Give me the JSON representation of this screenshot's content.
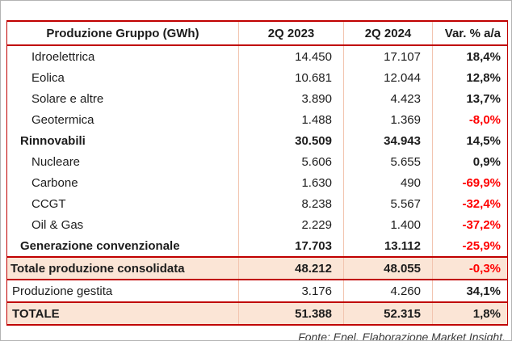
{
  "chart_data": {
    "type": "table",
    "title": "Produzione Gruppo (GWh)",
    "columns": [
      "Produzione Gruppo (GWh)",
      "2Q 2023",
      "2Q 2024",
      "Var. % a/a"
    ],
    "rows": [
      {
        "label": "Idroelettrica",
        "v2023": "14.450",
        "v2024": "17.107",
        "var": "18,4%",
        "style": "item"
      },
      {
        "label": "Eolica",
        "v2023": "10.681",
        "v2024": "12.044",
        "var": "12,8%",
        "style": "item"
      },
      {
        "label": "Solare e altre",
        "v2023": "3.890",
        "v2024": "4.423",
        "var": "13,7%",
        "style": "item"
      },
      {
        "label": "Geotermica",
        "v2023": "1.488",
        "v2024": "1.369",
        "var": "-8,0%",
        "style": "item"
      },
      {
        "label": "Rinnovabili",
        "v2023": "30.509",
        "v2024": "34.943",
        "var": "14,5%",
        "style": "group"
      },
      {
        "label": "Nucleare",
        "v2023": "5.606",
        "v2024": "5.655",
        "var": "0,9%",
        "style": "item"
      },
      {
        "label": "Carbone",
        "v2023": "1.630",
        "v2024": "490",
        "var": "-69,9%",
        "style": "item"
      },
      {
        "label": "CCGT",
        "v2023": "8.238",
        "v2024": "5.567",
        "var": "-32,4%",
        "style": "item"
      },
      {
        "label": "Oil & Gas",
        "v2023": "2.229",
        "v2024": "1.400",
        "var": "-37,2%",
        "style": "item"
      },
      {
        "label": "Generazione convenzionale",
        "v2023": "17.703",
        "v2024": "13.112",
        "var": "-25,9%",
        "style": "group"
      },
      {
        "label": "Totale produzione consolidata",
        "v2023": "48.212",
        "v2024": "48.055",
        "var": "-0,3%",
        "style": "grand"
      },
      {
        "label": "Produzione gestita",
        "v2023": "3.176",
        "v2024": "4.260",
        "var": "34,1%",
        "style": "managed"
      },
      {
        "label": "TOTALE",
        "v2023": "51.388",
        "v2024": "52.315",
        "var": "1,8%",
        "style": "total"
      }
    ]
  },
  "footer": {
    "text": "Fonte: Enel. Elaborazione Market Insight."
  },
  "colors": {
    "border_red": "#C00000",
    "grid_pink": "#F2C5B0",
    "row_shade": "#FBE5D6",
    "negative_red": "#FF0000"
  }
}
